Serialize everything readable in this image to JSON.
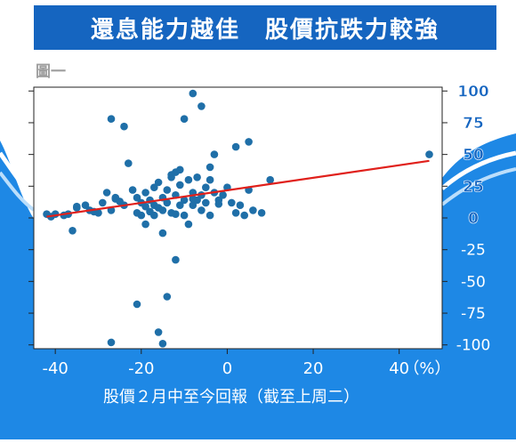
{
  "page": {
    "title": "還息能力越佳　股價抗跌力較強",
    "figure_label": "圖一"
  },
  "colors": {
    "brand_blue": "#1565c0",
    "wave_blue": "#1e88e5",
    "wave_light": "#bbdefb",
    "point": "#1f6fa8",
    "trend": "#e0201b"
  },
  "chart_data": {
    "type": "scatter",
    "title": "還息能力越佳　股價抗跌力較強",
    "xlabel": "股價２月中至今回報（截至上周二）",
    "x_unit": "（%）",
    "ylabel": "",
    "xlim": [
      -45,
      50
    ],
    "ylim": [
      -103,
      103
    ],
    "x_ticks": [
      -40,
      -20,
      0,
      20,
      40
    ],
    "y_ticks": [
      100,
      75,
      50,
      25,
      0,
      -25,
      -50,
      -75,
      -100
    ],
    "grid": false,
    "legend": "none",
    "trendline": {
      "x": [
        -42,
        47
      ],
      "y": [
        1,
        45
      ]
    },
    "points": [
      [
        -42,
        3
      ],
      [
        -41,
        1
      ],
      [
        -40,
        3
      ],
      [
        -38,
        2
      ],
      [
        -37,
        3
      ],
      [
        -36,
        -10
      ],
      [
        -35,
        8
      ],
      [
        -33,
        10
      ],
      [
        -32,
        6
      ],
      [
        -31,
        5
      ],
      [
        -30,
        4
      ],
      [
        -29,
        12
      ],
      [
        -28,
        20
      ],
      [
        -27,
        6
      ],
      [
        -27,
        78
      ],
      [
        -26,
        15
      ],
      [
        -25,
        13
      ],
      [
        -24,
        10
      ],
      [
        -23,
        43
      ],
      [
        -22,
        22
      ],
      [
        -21,
        16
      ],
      [
        -21,
        4
      ],
      [
        -20,
        12
      ],
      [
        -20,
        2
      ],
      [
        -19,
        -5
      ],
      [
        -19,
        20
      ],
      [
        -18,
        5
      ],
      [
        -18,
        14
      ],
      [
        -17,
        24
      ],
      [
        -17,
        10
      ],
      [
        -16,
        8
      ],
      [
        -16,
        28
      ],
      [
        -15,
        16
      ],
      [
        -15,
        6
      ],
      [
        -15,
        -12
      ],
      [
        -14,
        22
      ],
      [
        -14,
        12
      ],
      [
        -13,
        32
      ],
      [
        -13,
        4
      ],
      [
        -12,
        18
      ],
      [
        -12,
        36
      ],
      [
        -12,
        3
      ],
      [
        -11,
        10
      ],
      [
        -11,
        26
      ],
      [
        -10,
        14
      ],
      [
        -10,
        2
      ],
      [
        -9,
        30
      ],
      [
        -8,
        10
      ],
      [
        -8,
        20
      ],
      [
        -7,
        32
      ],
      [
        -7,
        14
      ],
      [
        -6,
        18
      ],
      [
        -6,
        6
      ],
      [
        -5,
        24
      ],
      [
        -5,
        12
      ],
      [
        -4,
        30
      ],
      [
        -4,
        2
      ],
      [
        -3,
        20
      ],
      [
        -2,
        14
      ],
      [
        -1,
        18
      ],
      [
        0,
        24
      ],
      [
        1,
        12
      ],
      [
        2,
        4
      ],
      [
        3,
        10
      ],
      [
        4,
        2
      ],
      [
        5,
        22
      ],
      [
        -24,
        72
      ],
      [
        -8,
        98
      ],
      [
        -6,
        88
      ],
      [
        -10,
        78
      ],
      [
        5,
        60
      ],
      [
        2,
        56
      ],
      [
        -3,
        50
      ],
      [
        -4,
        40
      ],
      [
        8,
        4
      ],
      [
        10,
        30
      ],
      [
        -21,
        -68
      ],
      [
        -12,
        -33
      ],
      [
        -14,
        -62
      ],
      [
        -16,
        -90
      ],
      [
        -15,
        -99
      ],
      [
        -27,
        -98
      ],
      [
        -9,
        -5
      ],
      [
        -11,
        38
      ],
      [
        -13,
        34
      ],
      [
        -26,
        16
      ],
      [
        -35,
        9
      ],
      [
        -19,
        9
      ],
      [
        -8,
        15
      ],
      [
        -17,
        2
      ],
      [
        -2,
        11
      ],
      [
        6,
        6
      ],
      [
        47,
        50
      ]
    ]
  }
}
